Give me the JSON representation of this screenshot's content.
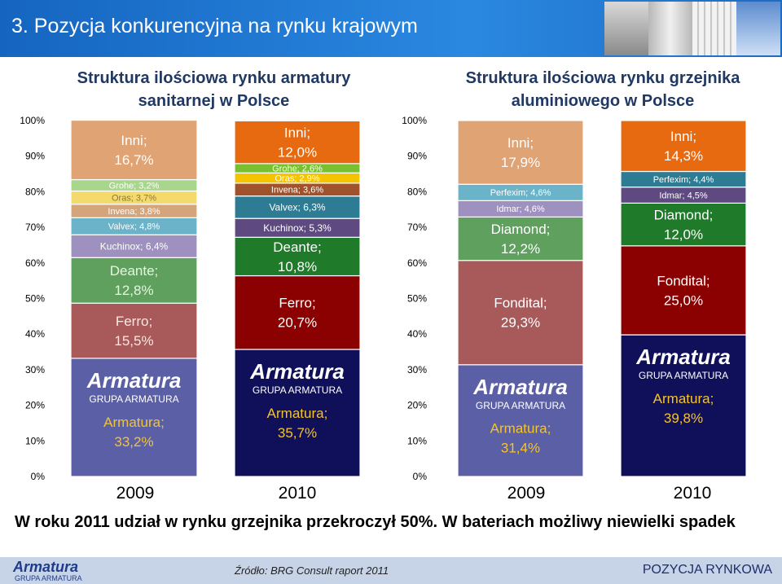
{
  "slide_title": "3. Pozycja konkurencyjna na rynku krajowym",
  "caption": "W roku 2011 udział w rynku grzejnika przekroczył 50%. W bateriach możliwy niewielki spadek",
  "footer": {
    "source": "Źródło: BRG Consult raport 2011",
    "position_label": "POZYCJA RYNKOWA",
    "logo_word": "Armatura",
    "logo_sub": "GRUPA ARMATURA"
  },
  "colors": {
    "header": "#1f73c9",
    "footer": "#c7d4e8",
    "title_text": "#1f3864",
    "armatura": "#5a5fa6",
    "armatura_2010": "#0f0f5a"
  },
  "chart_data": [
    {
      "type": "bar",
      "stacked": "100%",
      "title": "Struktura ilościowa rynku armatury sanitarnej w Polsce",
      "categories": [
        "2009",
        "2010"
      ],
      "ylim": [
        0,
        100
      ],
      "yticks": [
        "0%",
        "10%",
        "20%",
        "30%",
        "40%",
        "50%",
        "60%",
        "70%",
        "80%",
        "90%",
        "100%"
      ],
      "logo_word": "Armatura",
      "logo_sub": "GRUPA ARMATURA",
      "bars": [
        {
          "category": "2009",
          "segments": [
            {
              "name": "Armatura",
              "value": 33.2,
              "label": "Armatura;\n33,2%",
              "color": "#5a5fa6",
              "text": "#f4c430",
              "logo": true
            },
            {
              "name": "Ferro",
              "value": 15.5,
              "label": "Ferro;\n15,5%",
              "color": "#a85a5a",
              "text": "#f7e8e0"
            },
            {
              "name": "Deante",
              "value": 12.8,
              "label": "Deante;\n12,8%",
              "color": "#5fa05f",
              "text": "#e8f4e0"
            },
            {
              "name": "Kuchinox",
              "value": 6.4,
              "label": "Kuchinox; 6,4%",
              "color": "#9e91bf",
              "text": "#ffffff"
            },
            {
              "name": "Valvex",
              "value": 4.8,
              "label": "Valvex; 4,8%",
              "color": "#6bb3c8",
              "text": "#ffffff"
            },
            {
              "name": "Invena",
              "value": 3.8,
              "label": "Invena; 3,8%",
              "color": "#d4a47a",
              "text": "#ffffff"
            },
            {
              "name": "Oras",
              "value": 3.7,
              "label": "Oras; 3,7%",
              "color": "#f4d96c",
              "text": "#8a7a40"
            },
            {
              "name": "Grohe",
              "value": 3.2,
              "label": "Grohe; 3,2%",
              "color": "#a8d68c",
              "text": "#ffffff"
            },
            {
              "name": "Inni",
              "value": 16.7,
              "label": "Inni;\n16,7%",
              "color": "#e0a374",
              "text": "#ffffff"
            }
          ]
        },
        {
          "category": "2010",
          "segments": [
            {
              "name": "Armatura",
              "value": 35.7,
              "label": "Armatura;\n35,7%",
              "color": "#0f0f5a",
              "text": "#f4c430",
              "logo": true
            },
            {
              "name": "Ferro",
              "value": 20.7,
              "label": "Ferro;\n20,7%",
              "color": "#8b0000",
              "text": "#ffffff"
            },
            {
              "name": "Deante",
              "value": 10.8,
              "label": "Deante;\n10,8%",
              "color": "#1f7a2a",
              "text": "#ffffff"
            },
            {
              "name": "Kuchinox",
              "value": 5.3,
              "label": "Kuchinox; 5,3%",
              "color": "#5e4a80",
              "text": "#ffffff"
            },
            {
              "name": "Valvex",
              "value": 6.3,
              "label": "Valvex; 6,3%",
              "color": "#2e7c94",
              "text": "#ffffff"
            },
            {
              "name": "Invena",
              "value": 3.6,
              "label": "Invena; 3,6%",
              "color": "#a0522d",
              "text": "#ffffff"
            },
            {
              "name": "Oras",
              "value": 2.9,
              "label": "Oras; 2,9%",
              "color": "#f5c400",
              "text": "#ffffff"
            },
            {
              "name": "Grohe",
              "value": 2.6,
              "label": "Grohe; 2,6%",
              "color": "#78c030",
              "text": "#ffffff"
            },
            {
              "name": "Inni",
              "value": 12.0,
              "label": "Inni;\n12,0%",
              "color": "#e86a10",
              "text": "#ffffff"
            }
          ]
        }
      ]
    },
    {
      "type": "bar",
      "stacked": "100%",
      "title": "Struktura ilościowa rynku grzejnika aluminiowego w Polsce",
      "categories": [
        "2009",
        "2010"
      ],
      "ylim": [
        0,
        100
      ],
      "yticks": [
        "0%",
        "10%",
        "20%",
        "30%",
        "40%",
        "50%",
        "60%",
        "70%",
        "80%",
        "90%",
        "100%"
      ],
      "logo_word": "Armatura",
      "logo_sub": "GRUPA ARMATURA",
      "bars": [
        {
          "category": "2009",
          "segments": [
            {
              "name": "Armatura",
              "value": 31.4,
              "label": "Armatura;\n31,4%",
              "color": "#5a5fa6",
              "text": "#f4c430",
              "logo": true
            },
            {
              "name": "Fondital",
              "value": 29.3,
              "label": "Fondital;\n29,3%",
              "color": "#a85a5a",
              "text": "#ffffff"
            },
            {
              "name": "Diamond",
              "value": 12.2,
              "label": "Diamond;\n12,2%",
              "color": "#5fa05f",
              "text": "#ffffff"
            },
            {
              "name": "Idmar",
              "value": 4.6,
              "label": "Idmar; 4,6%",
              "color": "#9e91bf",
              "text": "#ffffff"
            },
            {
              "name": "Perfexim",
              "value": 4.6,
              "label": "Perfexim; 4,6%",
              "color": "#6bb3c8",
              "text": "#ffffff"
            },
            {
              "name": "Inni",
              "value": 17.9,
              "label": "Inni;\n17,9%",
              "color": "#e0a374",
              "text": "#ffffff"
            }
          ]
        },
        {
          "category": "2010",
          "segments": [
            {
              "name": "Armatura",
              "value": 39.8,
              "label": "Armatura;\n39,8%",
              "color": "#0f0f5a",
              "text": "#f4c430",
              "logo": true
            },
            {
              "name": "Fondital",
              "value": 25.0,
              "label": "Fondital;\n25,0%",
              "color": "#8b0000",
              "text": "#ffffff"
            },
            {
              "name": "Diamond",
              "value": 12.0,
              "label": "Diamond;\n12,0%",
              "color": "#1f7a2a",
              "text": "#ffffff"
            },
            {
              "name": "Idmar",
              "value": 4.5,
              "label": "Idmar; 4,5%",
              "color": "#5e4a80",
              "text": "#ffffff"
            },
            {
              "name": "Perfexim",
              "value": 4.4,
              "label": "Perfexim; 4,4%",
              "color": "#2e7c94",
              "text": "#ffffff"
            },
            {
              "name": "Inni",
              "value": 14.3,
              "label": "Inni;\n14,3%",
              "color": "#e86a10",
              "text": "#ffffff"
            }
          ]
        }
      ]
    }
  ]
}
